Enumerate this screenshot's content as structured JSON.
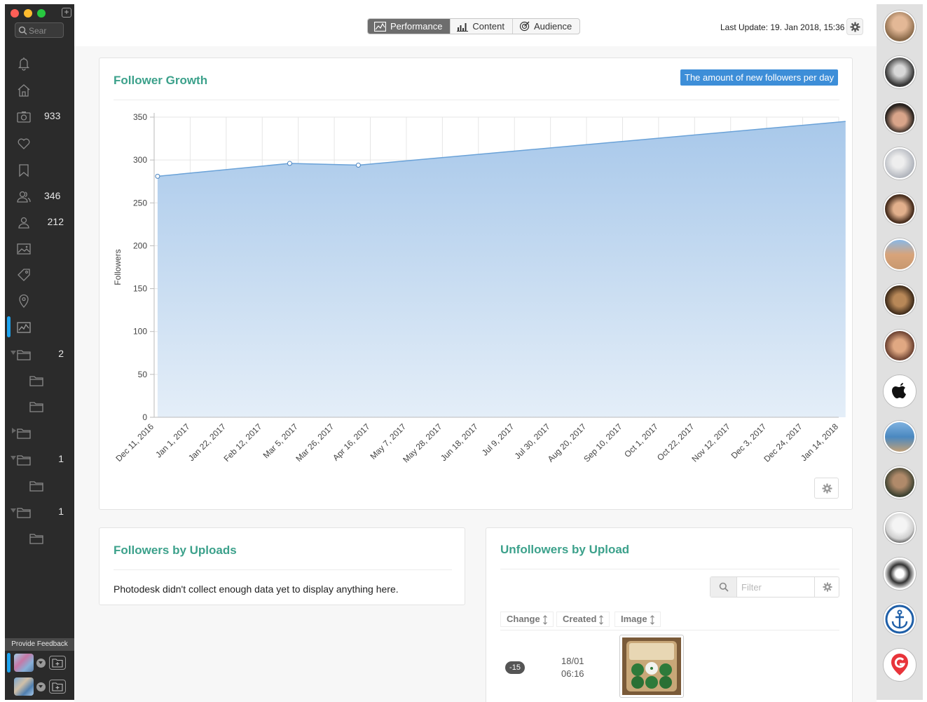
{
  "sidebar": {
    "search_placeholder": "Sear",
    "counts": {
      "photos": "933",
      "followers": "346",
      "following": "212",
      "folder1": "2",
      "folder3": "1",
      "folder4": "1"
    },
    "feedback_label": "Provide Feedback"
  },
  "topbar": {
    "tabs": [
      {
        "label": "Performance",
        "icon": "chart-line-icon",
        "active": true
      },
      {
        "label": "Content",
        "icon": "bar-chart-icon",
        "active": false
      },
      {
        "label": "Audience",
        "icon": "target-icon",
        "active": false
      }
    ],
    "last_update": "Last Update: 19. Jan 2018, 15:36"
  },
  "growth": {
    "title": "Follower Growth",
    "badge": "The amount of new followers per day"
  },
  "chart_data": {
    "type": "area",
    "ylabel": "Followers",
    "ylim": [
      0,
      350
    ],
    "y_ticks": [
      0,
      50,
      100,
      150,
      200,
      250,
      300,
      350
    ],
    "x_tick_labels": [
      "Dec 11, 2016",
      "Jan 1, 2017",
      "Jan 22, 2017",
      "Feb 12, 2017",
      "Mar 5, 2017",
      "Mar 26, 2017",
      "Apr 16, 2017",
      "May 7, 2017",
      "May 28, 2017",
      "Jun 18, 2017",
      "Jul 9, 2017",
      "Jul 30, 2017",
      "Aug 20, 2017",
      "Sep 10, 2017",
      "Oct 1, 2017",
      "Oct 22, 2017",
      "Nov 12, 2017",
      "Dec 3, 2017",
      "Dec 24, 2017",
      "Jan 14, 2018"
    ],
    "x_range": [
      "2016-12-11",
      "2018-01-14"
    ],
    "grid": true,
    "points": [
      {
        "x": "2016-12-13",
        "y": 281
      },
      {
        "x": "2017-02-28",
        "y": 296
      },
      {
        "x": "2017-04-09",
        "y": 294
      },
      {
        "x": "2018-01-18",
        "y": 345
      }
    ],
    "color": "#6aa2d8"
  },
  "uploads": {
    "title": "Followers by Uploads",
    "note": "Photodesk didn't collect enough data yet to display anything here."
  },
  "unfollowers": {
    "title": "Unfollowers by Upload",
    "filter_placeholder": "Filter",
    "columns": [
      "Change",
      "Created",
      "Image"
    ],
    "rows": [
      {
        "change": "-15",
        "created_date": "18/01",
        "created_time": "06:16"
      }
    ]
  }
}
